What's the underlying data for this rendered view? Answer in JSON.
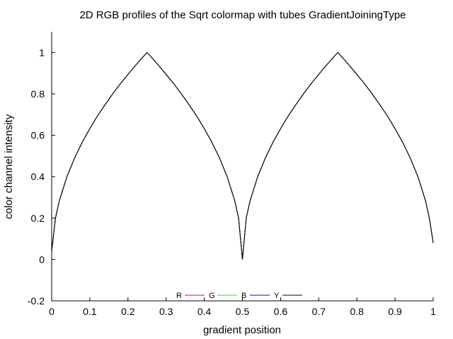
{
  "chart_data": {
    "type": "line",
    "title": "2D RGB profiles of the Sqrt colormap with tubes GradientJoiningType",
    "xlabel": "gradient position",
    "ylabel": "color channel intensity",
    "xlim": [
      0,
      1
    ],
    "ylim": [
      -0.2,
      1.1
    ],
    "xticks": [
      0,
      0.1,
      0.2,
      0.3,
      0.4,
      0.5,
      0.6,
      0.7,
      0.8,
      0.9,
      1
    ],
    "xtick_labels": [
      "0",
      "0.1",
      "0.2",
      "0.3",
      "0.4",
      "0.5",
      "0.6",
      "0.7",
      "0.8",
      "0.9",
      "1"
    ],
    "yticks": [
      -0.2,
      0,
      0.2,
      0.4,
      0.6,
      0.8,
      1
    ],
    "ytick_labels": [
      "-0.2",
      "0",
      "0.2",
      "0.4",
      "0.6",
      "0.8",
      "1"
    ],
    "grid": false,
    "legend_position": "bottom-center",
    "series": [
      {
        "name": "R",
        "color": "#ff0000",
        "x": [
          0,
          0.01,
          0.02,
          0.04,
          0.06,
          0.08,
          0.1,
          0.12,
          0.14,
          0.16,
          0.18,
          0.2,
          0.22,
          0.24,
          0.25,
          0.26,
          0.28,
          0.3,
          0.32,
          0.34,
          0.36,
          0.38,
          0.4,
          0.42,
          0.44,
          0.46,
          0.48,
          0.49,
          0.5,
          0.51,
          0.52,
          0.54,
          0.56,
          0.58,
          0.6,
          0.62,
          0.64,
          0.66,
          0.68,
          0.7,
          0.72,
          0.74,
          0.75,
          0.76,
          0.78,
          0.8,
          0.82,
          0.84,
          0.86,
          0.88,
          0.9,
          0.92,
          0.94,
          0.96,
          0.98,
          0.99,
          1
        ],
        "y": [
          0.04,
          0.2,
          0.283,
          0.4,
          0.49,
          0.566,
          0.632,
          0.693,
          0.748,
          0.8,
          0.849,
          0.894,
          0.938,
          0.98,
          1,
          0.98,
          0.938,
          0.894,
          0.849,
          0.8,
          0.748,
          0.693,
          0.632,
          0.566,
          0.49,
          0.4,
          0.283,
          0.2,
          0,
          0.2,
          0.283,
          0.4,
          0.49,
          0.566,
          0.632,
          0.693,
          0.748,
          0.8,
          0.849,
          0.894,
          0.938,
          0.98,
          1,
          0.98,
          0.938,
          0.894,
          0.849,
          0.8,
          0.748,
          0.693,
          0.632,
          0.566,
          0.49,
          0.4,
          0.283,
          0.2,
          0.08
        ]
      },
      {
        "name": "G",
        "color": "#00ff00",
        "x": [
          0,
          0.01,
          0.02,
          0.04,
          0.06,
          0.08,
          0.1,
          0.12,
          0.14,
          0.16,
          0.18,
          0.2,
          0.22,
          0.24,
          0.25,
          0.26,
          0.28,
          0.3,
          0.32,
          0.34,
          0.36,
          0.38,
          0.4,
          0.42,
          0.44,
          0.46,
          0.48,
          0.49,
          0.5,
          0.51,
          0.52,
          0.54,
          0.56,
          0.58,
          0.6,
          0.62,
          0.64,
          0.66,
          0.68,
          0.7,
          0.72,
          0.74,
          0.75,
          0.76,
          0.78,
          0.8,
          0.82,
          0.84,
          0.86,
          0.88,
          0.9,
          0.92,
          0.94,
          0.96,
          0.98,
          0.99,
          1
        ],
        "y": [
          0.04,
          0.2,
          0.283,
          0.4,
          0.49,
          0.566,
          0.632,
          0.693,
          0.748,
          0.8,
          0.849,
          0.894,
          0.938,
          0.98,
          1,
          0.98,
          0.938,
          0.894,
          0.849,
          0.8,
          0.748,
          0.693,
          0.632,
          0.566,
          0.49,
          0.4,
          0.283,
          0.2,
          0,
          0.2,
          0.283,
          0.4,
          0.49,
          0.566,
          0.632,
          0.693,
          0.748,
          0.8,
          0.849,
          0.894,
          0.938,
          0.98,
          1,
          0.98,
          0.938,
          0.894,
          0.849,
          0.8,
          0.748,
          0.693,
          0.632,
          0.566,
          0.49,
          0.4,
          0.283,
          0.2,
          0.08
        ]
      },
      {
        "name": "B",
        "color": "#0000ff",
        "x": [
          0,
          0.01,
          0.02,
          0.04,
          0.06,
          0.08,
          0.1,
          0.12,
          0.14,
          0.16,
          0.18,
          0.2,
          0.22,
          0.24,
          0.25,
          0.26,
          0.28,
          0.3,
          0.32,
          0.34,
          0.36,
          0.38,
          0.4,
          0.42,
          0.44,
          0.46,
          0.48,
          0.49,
          0.5,
          0.51,
          0.52,
          0.54,
          0.56,
          0.58,
          0.6,
          0.62,
          0.64,
          0.66,
          0.68,
          0.7,
          0.72,
          0.74,
          0.75,
          0.76,
          0.78,
          0.8,
          0.82,
          0.84,
          0.86,
          0.88,
          0.9,
          0.92,
          0.94,
          0.96,
          0.98,
          0.99,
          1
        ],
        "y": [
          0.04,
          0.2,
          0.283,
          0.4,
          0.49,
          0.566,
          0.632,
          0.693,
          0.748,
          0.8,
          0.849,
          0.894,
          0.938,
          0.98,
          1,
          0.98,
          0.938,
          0.894,
          0.849,
          0.8,
          0.748,
          0.693,
          0.632,
          0.566,
          0.49,
          0.4,
          0.283,
          0.2,
          0,
          0.2,
          0.283,
          0.4,
          0.49,
          0.566,
          0.632,
          0.693,
          0.748,
          0.8,
          0.849,
          0.894,
          0.938,
          0.98,
          1,
          0.98,
          0.938,
          0.894,
          0.849,
          0.8,
          0.748,
          0.693,
          0.632,
          0.566,
          0.49,
          0.4,
          0.283,
          0.2,
          0.08
        ]
      },
      {
        "name": "Y",
        "color": "#000000",
        "x": [
          0,
          0.01,
          0.02,
          0.04,
          0.06,
          0.08,
          0.1,
          0.12,
          0.14,
          0.16,
          0.18,
          0.2,
          0.22,
          0.24,
          0.25,
          0.26,
          0.28,
          0.3,
          0.32,
          0.34,
          0.36,
          0.38,
          0.4,
          0.42,
          0.44,
          0.46,
          0.48,
          0.49,
          0.5,
          0.51,
          0.52,
          0.54,
          0.56,
          0.58,
          0.6,
          0.62,
          0.64,
          0.66,
          0.68,
          0.7,
          0.72,
          0.74,
          0.75,
          0.76,
          0.78,
          0.8,
          0.82,
          0.84,
          0.86,
          0.88,
          0.9,
          0.92,
          0.94,
          0.96,
          0.98,
          0.99,
          1
        ],
        "y": [
          0.04,
          0.2,
          0.283,
          0.4,
          0.49,
          0.566,
          0.632,
          0.693,
          0.748,
          0.8,
          0.849,
          0.894,
          0.938,
          0.98,
          1,
          0.98,
          0.938,
          0.894,
          0.849,
          0.8,
          0.748,
          0.693,
          0.632,
          0.566,
          0.49,
          0.4,
          0.283,
          0.2,
          0,
          0.2,
          0.283,
          0.4,
          0.49,
          0.566,
          0.632,
          0.693,
          0.748,
          0.8,
          0.849,
          0.894,
          0.938,
          0.98,
          1,
          0.98,
          0.938,
          0.894,
          0.849,
          0.8,
          0.748,
          0.693,
          0.632,
          0.566,
          0.49,
          0.4,
          0.283,
          0.2,
          0.08
        ]
      }
    ]
  }
}
